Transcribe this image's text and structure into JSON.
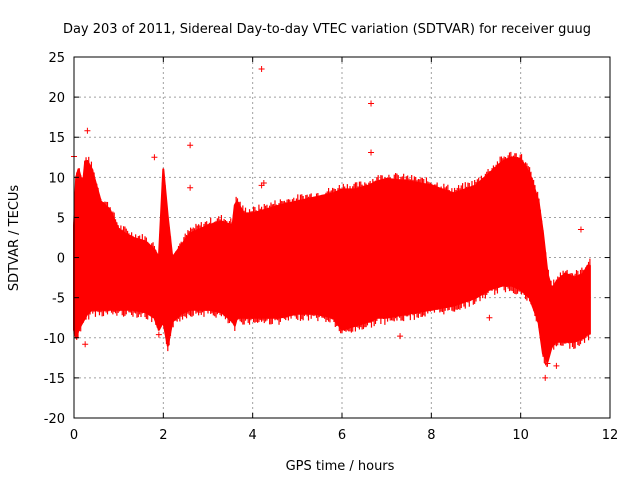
{
  "chart_data": {
    "type": "scatter",
    "title": "Day 203 of 2011, Sidereal Day-to-day VTEC variation (SDTVAR) for receiver guug",
    "xlabel": "GPS time / hours",
    "ylabel": "SDTVAR / TECUs",
    "xlim": [
      0,
      12
    ],
    "ylim": [
      -20,
      25
    ],
    "xticks": [
      0,
      2,
      4,
      6,
      8,
      10,
      12
    ],
    "yticks": [
      -20,
      -15,
      -10,
      -5,
      0,
      5,
      10,
      15,
      20,
      25
    ],
    "grid": true,
    "color": "#ff0000",
    "marker": "plus",
    "band": {
      "description": "dense envelope of per-epoch values (upper/lower bounds vs time)",
      "x": [
        0.0,
        0.05,
        0.1,
        0.2,
        0.25,
        0.3,
        0.4,
        0.5,
        0.6,
        0.8,
        1.0,
        1.3,
        1.6,
        1.8,
        1.9,
        2.0,
        2.1,
        2.2,
        2.4,
        2.6,
        2.8,
        3.0,
        3.3,
        3.55,
        3.6,
        3.65,
        3.8,
        4.0,
        4.3,
        4.6,
        5.0,
        5.4,
        5.8,
        6.0,
        6.3,
        6.6,
        6.8,
        7.0,
        7.5,
        8.0,
        8.5,
        9.0,
        9.3,
        9.6,
        9.8,
        10.0,
        10.2,
        10.4,
        10.5,
        10.6,
        10.7,
        10.8,
        11.0,
        11.2,
        11.4,
        11.5,
        11.55
      ],
      "upper": [
        4.0,
        10.0,
        11.0,
        9.0,
        12.0,
        12.0,
        11.0,
        9.0,
        7.0,
        6.0,
        3.5,
        2.5,
        2.0,
        1.0,
        0.0,
        11.0,
        5.0,
        0.0,
        1.5,
        3.0,
        3.5,
        4.0,
        4.5,
        4.0,
        6.5,
        7.0,
        5.5,
        5.5,
        6.0,
        6.5,
        7.0,
        7.5,
        8.0,
        8.5,
        8.5,
        9.0,
        9.5,
        9.8,
        9.5,
        9.0,
        8.0,
        9.0,
        10.5,
        12.0,
        12.5,
        12.3,
        10.5,
        7.0,
        3.0,
        -2.0,
        -4.0,
        -3.0,
        -2.0,
        -2.5,
        -2.0,
        -1.0,
        -1.0
      ],
      "lower": [
        -9.0,
        -10.0,
        -9.0,
        -8.0,
        -7.5,
        -7.0,
        -6.5,
        -6.5,
        -6.5,
        -6.5,
        -6.5,
        -6.5,
        -6.8,
        -7.5,
        -9.0,
        -8.0,
        -11.0,
        -8.0,
        -7.0,
        -6.5,
        -6.5,
        -6.5,
        -6.8,
        -8.0,
        -8.5,
        -7.5,
        -7.5,
        -7.5,
        -7.5,
        -7.5,
        -7.0,
        -7.0,
        -7.5,
        -9.0,
        -8.5,
        -8.0,
        -7.5,
        -7.5,
        -7.0,
        -6.5,
        -6.0,
        -5.0,
        -4.0,
        -3.5,
        -3.5,
        -4.0,
        -5.0,
        -8.0,
        -12.0,
        -13.0,
        -11.0,
        -10.5,
        -10.5,
        -10.5,
        -10.0,
        -9.5,
        -9.5
      ]
    },
    "outliers": {
      "x": [
        0.0,
        0.3,
        1.8,
        2.6,
        2.6,
        4.2,
        4.2,
        4.25,
        6.65,
        6.65,
        7.3,
        9.3,
        10.55,
        10.6,
        10.8,
        11.35,
        0.25,
        1.9
      ],
      "y": [
        12.6,
        15.8,
        12.5,
        14.0,
        8.7,
        23.5,
        9.0,
        9.3,
        19.2,
        13.1,
        -9.8,
        -7.5,
        -15.0,
        -13.2,
        -13.5,
        3.5,
        -10.8,
        -9.6
      ]
    }
  }
}
